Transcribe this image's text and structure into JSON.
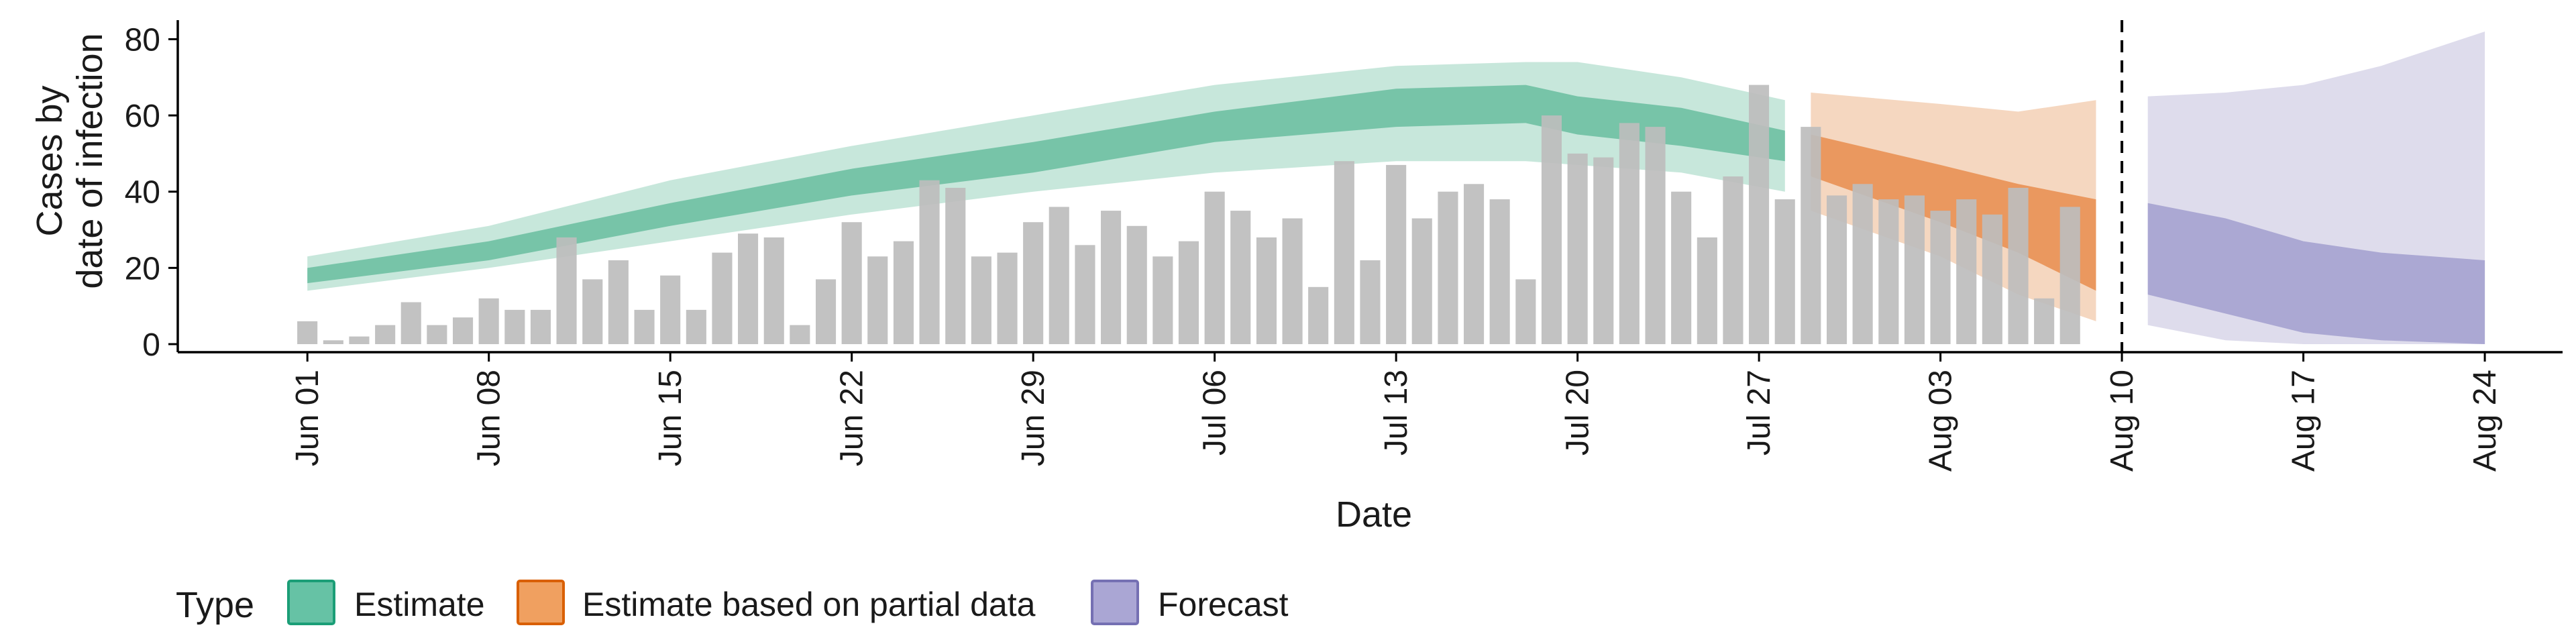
{
  "chart_data": {
    "type": "bar",
    "xlabel": "Date",
    "ylabel_lines": [
      "Cases by",
      "date of infection"
    ],
    "ylim": [
      0,
      85
    ],
    "y_ticks": [
      0,
      20,
      40,
      60,
      80
    ],
    "x_range": [
      "2020-05-27",
      "2020-08-27"
    ],
    "x_ticks": [
      {
        "date": "2020-06-01",
        "label": "Jun 01"
      },
      {
        "date": "2020-06-08",
        "label": "Jun 08"
      },
      {
        "date": "2020-06-15",
        "label": "Jun 15"
      },
      {
        "date": "2020-06-22",
        "label": "Jun 22"
      },
      {
        "date": "2020-06-29",
        "label": "Jun 29"
      },
      {
        "date": "2020-07-06",
        "label": "Jul 06"
      },
      {
        "date": "2020-07-13",
        "label": "Jul 13"
      },
      {
        "date": "2020-07-20",
        "label": "Jul 20"
      },
      {
        "date": "2020-07-27",
        "label": "Jul 27"
      },
      {
        "date": "2020-08-03",
        "label": "Aug 03"
      },
      {
        "date": "2020-08-10",
        "label": "Aug 10"
      },
      {
        "date": "2020-08-17",
        "label": "Aug 17"
      },
      {
        "date": "2020-08-24",
        "label": "Aug 24"
      }
    ],
    "vline_date": "2020-08-10",
    "grid": false,
    "legend_position": "bottom",
    "legend_title": "Type",
    "legend": [
      {
        "label": "Estimate",
        "fill": "#66c2a5",
        "stroke": "#1b9e77"
      },
      {
        "label": "Estimate based on partial data",
        "fill": "#f0a060",
        "stroke": "#d95f02"
      },
      {
        "label": "Forecast",
        "fill": "#aaa6d4",
        "stroke": "#7570b3"
      }
    ],
    "colors": {
      "bars": "#bdbdbd",
      "estimate_outer": "#c4e6d9",
      "estimate_inner": "#73c2a5",
      "partial_outer": "#f4d5bd",
      "partial_inner": "#e9955a",
      "forecast_outer": "#dcdaeb",
      "forecast_inner": "#a8a4d2"
    },
    "bars": {
      "start_date": "2020-06-01",
      "values": [
        6,
        1,
        2,
        5,
        11,
        5,
        7,
        12,
        9,
        9,
        28,
        17,
        22,
        9,
        18,
        9,
        24,
        29,
        28,
        5,
        17,
        32,
        23,
        27,
        43,
        41,
        23,
        24,
        32,
        36,
        26,
        35,
        31,
        23,
        27,
        40,
        35,
        28,
        33,
        15,
        48,
        22,
        47,
        33,
        40,
        42,
        38,
        17,
        60,
        50,
        49,
        58,
        57,
        40,
        28,
        44,
        68,
        38,
        57,
        39,
        42,
        38,
        39,
        35,
        38,
        34,
        41,
        12,
        36
      ]
    },
    "estimate": {
      "dates": [
        "2020-06-01",
        "2020-06-08",
        "2020-06-15",
        "2020-06-22",
        "2020-06-29",
        "2020-07-06",
        "2020-07-13",
        "2020-07-18",
        "2020-07-20",
        "2020-07-24",
        "2020-07-28"
      ],
      "outer_upper": [
        23,
        31,
        43,
        52,
        60,
        68,
        73,
        74,
        74,
        70,
        64
      ],
      "outer_lower": [
        14,
        20,
        27,
        34,
        40,
        45,
        48,
        48,
        47,
        45,
        40
      ],
      "inner_upper": [
        20,
        27,
        37,
        46,
        53,
        61,
        67,
        68,
        65,
        62,
        56
      ],
      "inner_lower": [
        16,
        22,
        31,
        39,
        45,
        53,
        57,
        58,
        55,
        52,
        48
      ]
    },
    "partial": {
      "dates": [
        "2020-07-29",
        "2020-08-03",
        "2020-08-06",
        "2020-08-09"
      ],
      "outer_upper": [
        66,
        63,
        61,
        64
      ],
      "outer_lower": [
        35,
        23,
        13,
        6
      ],
      "inner_upper": [
        55,
        47,
        42,
        38
      ],
      "inner_lower": [
        44,
        32,
        24,
        14
      ]
    },
    "forecast": {
      "dates": [
        "2020-08-11",
        "2020-08-14",
        "2020-08-17",
        "2020-08-20",
        "2020-08-24"
      ],
      "outer_upper": [
        65,
        66,
        68,
        73,
        82
      ],
      "outer_lower": [
        5,
        1,
        0,
        0,
        0
      ],
      "inner_upper": [
        37,
        33,
        27,
        24,
        22
      ],
      "inner_lower": [
        13,
        8,
        3,
        1,
        0
      ]
    }
  }
}
